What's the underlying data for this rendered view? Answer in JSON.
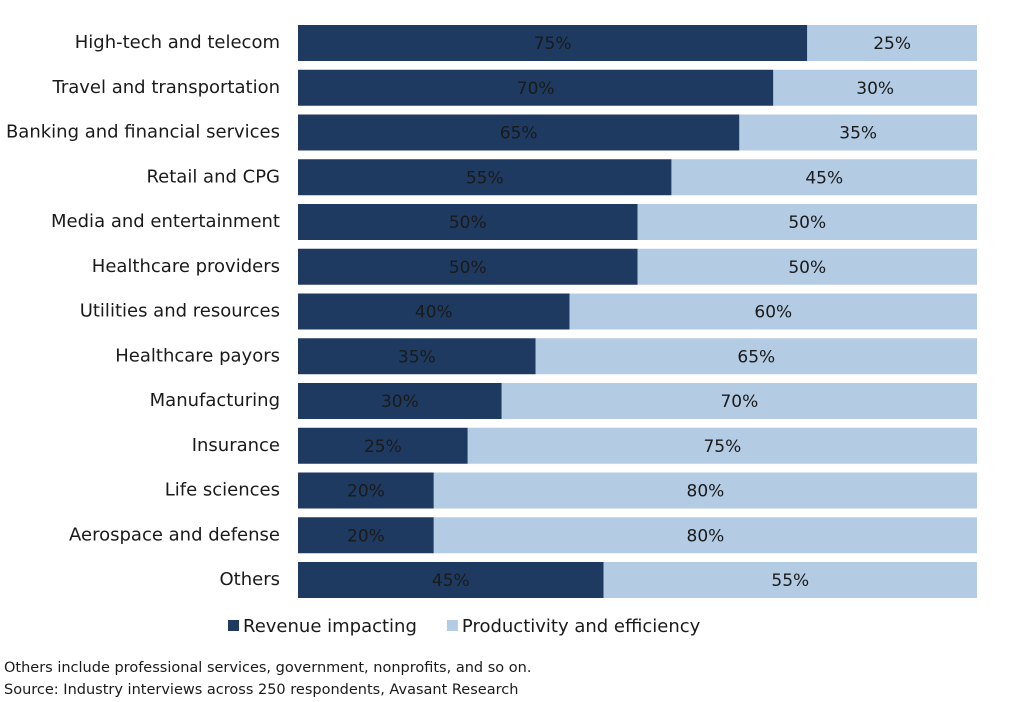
{
  "chart_data": {
    "type": "stacked_barh",
    "categories": [
      "High-tech and telecom",
      "Travel and transportation",
      "Banking and financial services",
      "Retail and CPG",
      "Media and entertainment",
      "Healthcare providers",
      "Utilities and resources",
      "Healthcare payors",
      "Manufacturing",
      "Insurance",
      "Life sciences",
      "Aerospace and defense",
      "Others"
    ],
    "series": [
      {
        "name": "Revenue impacting",
        "color": "#1f3a60",
        "values": [
          75,
          70,
          65,
          55,
          50,
          50,
          40,
          35,
          30,
          25,
          20,
          20,
          45
        ],
        "value_labels": [
          "75%",
          "70%",
          "65%",
          "55%",
          "50%",
          "50%",
          "40%",
          "35%",
          "30%",
          "25%",
          "20%",
          "20%",
          "45%"
        ]
      },
      {
        "name": "Productivity and efficiency",
        "color": "#b3cbe3",
        "values": [
          25,
          30,
          35,
          45,
          50,
          50,
          60,
          65,
          70,
          75,
          80,
          80,
          55
        ],
        "value_labels": [
          "25%",
          "30%",
          "35%",
          "45%",
          "50%",
          "50%",
          "60%",
          "65%",
          "70%",
          "75%",
          "80%",
          "80%",
          "55%"
        ]
      }
    ],
    "xlim": [
      0,
      100
    ],
    "legend": "bottom",
    "notes": [
      "Others include professional services, government, nonprofits, and so on.",
      "Source: Industry interviews across 250 respondents, Avasant Research"
    ]
  }
}
